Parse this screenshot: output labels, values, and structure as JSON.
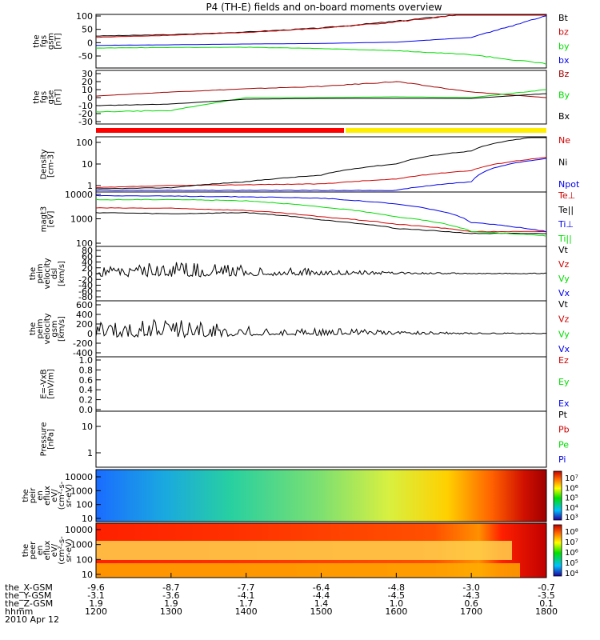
{
  "title": "P4 (TH-E) fields and on-board moments overview",
  "colors": {
    "black": "#000000",
    "red": "#d00000",
    "green": "#00dd00",
    "blue": "#0000ee",
    "darkred": "#a00000",
    "yellow": "#ffee00"
  },
  "panels": [
    {
      "id": "fgs-gsm",
      "ylabel": [
        "the",
        "fgs",
        "gsm",
        "[nT]"
      ],
      "ticks": [
        "100",
        "50",
        "0",
        "-50"
      ],
      "legend": [
        "Bt",
        "bz",
        "by",
        "bx"
      ],
      "legend_colors": [
        "black",
        "red",
        "green",
        "blue"
      ]
    },
    {
      "id": "fgs-gse",
      "ylabel": [
        "the",
        "fgs",
        "gse",
        "[nT]"
      ],
      "ticks": [
        "30",
        "20",
        "10",
        "0",
        "-10",
        "-20",
        "-30"
      ],
      "legend": [
        "Bz",
        "By",
        "Bx"
      ],
      "legend_colors": [
        "darkred",
        "green",
        "black"
      ]
    },
    {
      "id": "density",
      "ylabel": [
        "Density",
        "[cm-3]"
      ],
      "ticks": [
        "100",
        "10",
        "1"
      ],
      "legend": [
        "Ne",
        "Ni",
        "Npot"
      ],
      "legend_colors": [
        "red",
        "black",
        "blue"
      ]
    },
    {
      "id": "temperature",
      "ylabel": [
        "magt3",
        "[eV]"
      ],
      "ticks": [
        "10000",
        "1000",
        "100"
      ],
      "legend": [
        "Te⊥",
        "Te||",
        "Ti⊥",
        "Ti||"
      ],
      "legend_colors": [
        "red",
        "black",
        "blue",
        "green"
      ]
    },
    {
      "id": "peim-velocity-dsl",
      "ylabel": [
        "the",
        "peim",
        "velocity",
        "dsl",
        "[km/s]"
      ],
      "ticks": [
        "80",
        "60",
        "40",
        "20",
        "0",
        "-20",
        "-40",
        "-60",
        "-80"
      ],
      "legend": [
        "Vt",
        "Vz",
        "Vy",
        "Vx"
      ],
      "legend_colors": [
        "black",
        "red",
        "green",
        "blue"
      ]
    },
    {
      "id": "peim-velocity-gsm",
      "ylabel": [
        "the",
        "peim",
        "velocity",
        "gsm",
        "[km/s]"
      ],
      "ticks": [
        "600",
        "400",
        "200",
        "0",
        "-200",
        "-400"
      ],
      "legend": [
        "Vt",
        "Vz",
        "Vy",
        "Vx"
      ],
      "legend_colors": [
        "black",
        "red",
        "green",
        "blue"
      ]
    },
    {
      "id": "efield",
      "ylabel": [
        "E=-VxB",
        "[mV/m]"
      ],
      "ticks": [
        "1.0",
        "0.8",
        "0.6",
        "0.4",
        "0.2",
        "0.0"
      ],
      "legend": [
        "Ez",
        "Ey",
        "Ex"
      ],
      "legend_colors": [
        "red",
        "green",
        "blue"
      ]
    },
    {
      "id": "pressure",
      "ylabel": [
        "Pressure",
        "[nPa]"
      ],
      "ticks": [
        "10",
        "1"
      ],
      "legend": [
        "Pt",
        "Pb",
        "Pe",
        "Pi"
      ],
      "legend_colors": [
        "black",
        "red",
        "green",
        "blue"
      ]
    },
    {
      "id": "peir-spec",
      "ylabel": [
        "the",
        "peir",
        "en",
        "eflux",
        "eV/",
        "(cm²-s-",
        "sr-eV)"
      ],
      "ticks": [
        "10000",
        "1000",
        "100",
        "10"
      ],
      "colorbar": [
        "10⁷",
        "10⁶",
        "10⁵",
        "10⁴",
        "10³"
      ]
    },
    {
      "id": "peer-spec",
      "ylabel": [
        "the",
        "peer",
        "en",
        "eflux",
        "eV/",
        "(cm²-s-",
        "sr-eV)"
      ],
      "ticks": [
        "10000",
        "1000",
        "100",
        "10"
      ],
      "colorbar": [
        "10⁸",
        "10⁷",
        "10⁶",
        "10⁵",
        "10⁴"
      ]
    }
  ],
  "xaxis": {
    "row_labels": [
      "the_X-GSM",
      "the_Y-GSM",
      "the_Z-GSM",
      "hhmm",
      "2010 Apr 12"
    ],
    "columns": [
      {
        "x": "-9.6",
        "y": "-3.1",
        "z": "1.9",
        "t": "1200"
      },
      {
        "x": "-8.7",
        "y": "-3.6",
        "z": "1.9",
        "t": "1300"
      },
      {
        "x": "-7.7",
        "y": "-4.1",
        "z": "1.7",
        "t": "1400"
      },
      {
        "x": "-6.4",
        "y": "-4.4",
        "z": "1.4",
        "t": "1500"
      },
      {
        "x": "-4.8",
        "y": "-4.5",
        "z": "1.0",
        "t": "1600"
      },
      {
        "x": "-3.0",
        "y": "-4.3",
        "z": "0.6",
        "t": "1700"
      },
      {
        "x": "-0.7",
        "y": "-3.5",
        "z": "0.1",
        "t": "1800"
      }
    ]
  },
  "chart_data": {
    "type": "line",
    "title": "P4 (TH-E) fields and on-board moments overview",
    "x": [
      "1200",
      "1300",
      "1400",
      "1500",
      "1600",
      "1700",
      "1800"
    ],
    "series": [
      {
        "name": "Bt",
        "panel": "fgs-gsm",
        "values": [
          25,
          30,
          40,
          55,
          80,
          110,
          140
        ]
      },
      {
        "name": "bz",
        "panel": "fgs-gsm",
        "values": [
          20,
          28,
          38,
          54,
          78,
          108,
          138
        ]
      },
      {
        "name": "by",
        "panel": "fgs-gsm",
        "values": [
          -20,
          -18,
          -17,
          -22,
          -30,
          -45,
          -80
        ]
      },
      {
        "name": "bx",
        "panel": "fgs-gsm",
        "values": [
          -10,
          -8,
          -5,
          -3,
          2,
          20,
          100
        ]
      },
      {
        "name": "Bz",
        "panel": "fgs-gse",
        "values": [
          2,
          7,
          11,
          14,
          20,
          7,
          0
        ]
      },
      {
        "name": "By",
        "panel": "fgs-gse",
        "values": [
          -18,
          -16,
          0,
          0,
          1,
          0,
          10
        ]
      },
      {
        "name": "Bx",
        "panel": "fgs-gse",
        "values": [
          -10,
          -8,
          -2,
          -1,
          -1,
          -1,
          5
        ]
      },
      {
        "name": "Ne",
        "panel": "density",
        "values": [
          0.8,
          1.0,
          1.1,
          1.2,
          2,
          5,
          20
        ]
      },
      {
        "name": "Ni",
        "panel": "density",
        "values": [
          0.7,
          0.8,
          1.5,
          3,
          10,
          40,
          200
        ]
      },
      {
        "name": "Npot",
        "panel": "density",
        "values": [
          0.6,
          0.6,
          0.6,
          0.6,
          0.6,
          1.5,
          18
        ]
      },
      {
        "name": "Te⊥",
        "panel": "temperature",
        "values": [
          2800,
          2700,
          2200,
          1200,
          600,
          300,
          300
        ]
      },
      {
        "name": "Te||",
        "panel": "temperature",
        "values": [
          1800,
          1600,
          1800,
          900,
          400,
          250,
          250
        ]
      },
      {
        "name": "Ti⊥",
        "panel": "temperature",
        "values": [
          9000,
          8500,
          8000,
          7000,
          4000,
          700,
          300
        ]
      },
      {
        "name": "Ti||",
        "panel": "temperature",
        "values": [
          6000,
          6200,
          5500,
          3000,
          1200,
          300,
          200
        ]
      },
      {
        "name": "Vt",
        "panel": "peim-velocity-dsl",
        "values": [
          15,
          20,
          15,
          8,
          3,
          1,
          1
        ]
      },
      {
        "name": "Vt",
        "panel": "peim-velocity-gsm",
        "values": [
          120,
          150,
          80,
          60,
          30,
          10,
          5
        ]
      }
    ]
  }
}
